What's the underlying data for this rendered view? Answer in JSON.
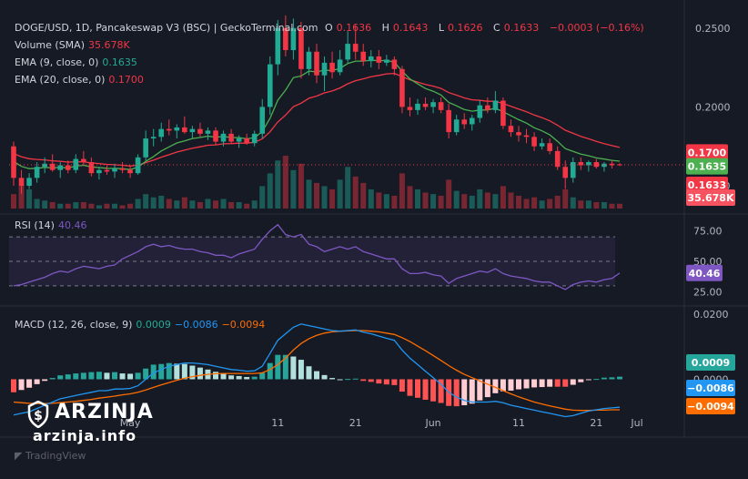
{
  "header": {
    "symbol": "DOGE/USD, 1D, Pancakeswap V3 (BSC) | GeckoTerminal.com",
    "ohlc": [
      {
        "key": "O",
        "value": "0.1636"
      },
      {
        "key": "H",
        "value": "0.1643"
      },
      {
        "key": "L",
        "value": "0.1626"
      },
      {
        "key": "C",
        "value": "0.1633"
      }
    ],
    "change": "−0.0003 (−0.16%)"
  },
  "indicators": {
    "volume": {
      "label": "Volume (SMA)",
      "value": "35.678K"
    },
    "ema9": {
      "label": "EMA (9, close, 0)",
      "value": "0.1635"
    },
    "ema20": {
      "label": "EMA (20, close, 0)",
      "value": "0.1700"
    },
    "rsi": {
      "label": "RSI (14)",
      "value": "40.46"
    },
    "macd": {
      "label": "MACD (12, 26, close, 9)",
      "hist": "0.0009",
      "macd": "−0.0086",
      "signal": "−0.0094"
    }
  },
  "branding": {
    "name": "ARZINJA",
    "url": "arzinja.info",
    "platform": "TradingView"
  },
  "colors": {
    "bg": "#161a25",
    "up": "#22ab94",
    "down": "#f23645",
    "ema9": "#4caf50",
    "ema20": "#f23645",
    "rsi": "#7e57c2",
    "macd": "#2196f3",
    "signal": "#ff6d00"
  },
  "chart_data": [
    {
      "type": "candlestick",
      "title": "DOGE/USD, 1D, Pancakeswap V3 (BSC) | GeckoTerminal.com",
      "x_ticks": [
        "May",
        "11",
        "21",
        "Jun",
        "11",
        "21",
        "Jul"
      ],
      "y_ticks": [
        "0.2500",
        "0.2000",
        "0.1500"
      ],
      "ylim": [
        0.135,
        0.262
      ],
      "last_price_tags": [
        {
          "value": "0.1700",
          "series": "ema20"
        },
        {
          "value": "0.1635",
          "series": "ema9"
        },
        {
          "value": "0.1633",
          "series": "close"
        }
      ],
      "volume_tag": "35.678K",
      "candles": [
        [
          0.175,
          0.178,
          0.15,
          0.155
        ],
        [
          0.155,
          0.16,
          0.145,
          0.15
        ],
        [
          0.15,
          0.158,
          0.148,
          0.155
        ],
        [
          0.155,
          0.165,
          0.152,
          0.162
        ],
        [
          0.162,
          0.168,
          0.158,
          0.164
        ],
        [
          0.164,
          0.17,
          0.159,
          0.16
        ],
        [
          0.16,
          0.165,
          0.155,
          0.163
        ],
        [
          0.163,
          0.166,
          0.158,
          0.16
        ],
        [
          0.16,
          0.17,
          0.158,
          0.167
        ],
        [
          0.167,
          0.172,
          0.163,
          0.165
        ],
        [
          0.165,
          0.168,
          0.156,
          0.158
        ],
        [
          0.158,
          0.162,
          0.154,
          0.16
        ],
        [
          0.16,
          0.163,
          0.157,
          0.159
        ],
        [
          0.159,
          0.164,
          0.155,
          0.161
        ],
        [
          0.161,
          0.165,
          0.158,
          0.16
        ],
        [
          0.16,
          0.163,
          0.155,
          0.158
        ],
        [
          0.158,
          0.17,
          0.157,
          0.168
        ],
        [
          0.168,
          0.185,
          0.166,
          0.18
        ],
        [
          0.18,
          0.186,
          0.175,
          0.181
        ],
        [
          0.181,
          0.19,
          0.178,
          0.186
        ],
        [
          0.186,
          0.192,
          0.182,
          0.185
        ],
        [
          0.185,
          0.189,
          0.18,
          0.187
        ],
        [
          0.187,
          0.194,
          0.183,
          0.184
        ],
        [
          0.184,
          0.188,
          0.18,
          0.186
        ],
        [
          0.186,
          0.19,
          0.181,
          0.183
        ],
        [
          0.183,
          0.187,
          0.179,
          0.185
        ],
        [
          0.185,
          0.187,
          0.176,
          0.178
        ],
        [
          0.178,
          0.185,
          0.175,
          0.183
        ],
        [
          0.183,
          0.186,
          0.177,
          0.178
        ],
        [
          0.178,
          0.182,
          0.174,
          0.18
        ],
        [
          0.18,
          0.183,
          0.176,
          0.177
        ],
        [
          0.177,
          0.185,
          0.175,
          0.183
        ],
        [
          0.183,
          0.205,
          0.18,
          0.2
        ],
        [
          0.2,
          0.232,
          0.195,
          0.227
        ],
        [
          0.227,
          0.255,
          0.22,
          0.25
        ],
        [
          0.25,
          0.258,
          0.232,
          0.236
        ],
        [
          0.236,
          0.256,
          0.23,
          0.25
        ],
        [
          0.25,
          0.254,
          0.218,
          0.224
        ],
        [
          0.224,
          0.238,
          0.22,
          0.235
        ],
        [
          0.235,
          0.24,
          0.215,
          0.22
        ],
        [
          0.22,
          0.232,
          0.21,
          0.228
        ],
        [
          0.228,
          0.235,
          0.218,
          0.222
        ],
        [
          0.222,
          0.236,
          0.22,
          0.23
        ],
        [
          0.23,
          0.248,
          0.228,
          0.24
        ],
        [
          0.24,
          0.252,
          0.23,
          0.235
        ],
        [
          0.235,
          0.24,
          0.226,
          0.229
        ],
        [
          0.229,
          0.236,
          0.225,
          0.232
        ],
        [
          0.232,
          0.236,
          0.224,
          0.228
        ],
        [
          0.228,
          0.233,
          0.226,
          0.23
        ],
        [
          0.23,
          0.232,
          0.22,
          0.224
        ],
        [
          0.224,
          0.226,
          0.196,
          0.2
        ],
        [
          0.2,
          0.206,
          0.194,
          0.198
        ],
        [
          0.198,
          0.205,
          0.195,
          0.202
        ],
        [
          0.202,
          0.206,
          0.198,
          0.2
        ],
        [
          0.2,
          0.205,
          0.196,
          0.203
        ],
        [
          0.203,
          0.206,
          0.196,
          0.198
        ],
        [
          0.198,
          0.202,
          0.18,
          0.184
        ],
        [
          0.184,
          0.195,
          0.182,
          0.192
        ],
        [
          0.192,
          0.196,
          0.186,
          0.189
        ],
        [
          0.189,
          0.195,
          0.185,
          0.193
        ],
        [
          0.193,
          0.204,
          0.19,
          0.201
        ],
        [
          0.201,
          0.206,
          0.196,
          0.198
        ],
        [
          0.198,
          0.21,
          0.196,
          0.204
        ],
        [
          0.204,
          0.206,
          0.186,
          0.188
        ],
        [
          0.188,
          0.192,
          0.181,
          0.184
        ],
        [
          0.184,
          0.188,
          0.178,
          0.182
        ],
        [
          0.182,
          0.186,
          0.177,
          0.181
        ],
        [
          0.181,
          0.184,
          0.172,
          0.175
        ],
        [
          0.175,
          0.18,
          0.173,
          0.177
        ],
        [
          0.177,
          0.18,
          0.17,
          0.172
        ],
        [
          0.172,
          0.175,
          0.16,
          0.162
        ],
        [
          0.162,
          0.166,
          0.148,
          0.155
        ],
        [
          0.155,
          0.168,
          0.152,
          0.165
        ],
        [
          0.165,
          0.168,
          0.16,
          0.163
        ],
        [
          0.163,
          0.166,
          0.159,
          0.165
        ],
        [
          0.165,
          0.167,
          0.161,
          0.162
        ],
        [
          0.162,
          0.165,
          0.159,
          0.164
        ],
        [
          0.164,
          0.166,
          0.161,
          0.163
        ],
        [
          0.1636,
          0.1643,
          0.1626,
          0.1633
        ]
      ],
      "volume": [
        9,
        15,
        12,
        6,
        5,
        4,
        3,
        3,
        4,
        4,
        3,
        2,
        3,
        3,
        2,
        3,
        6,
        9,
        7,
        8,
        6,
        5,
        7,
        5,
        4,
        6,
        5,
        6,
        4,
        4,
        3,
        5,
        14,
        22,
        30,
        33,
        24,
        28,
        18,
        16,
        14,
        12,
        18,
        26,
        20,
        16,
        12,
        10,
        9,
        8,
        22,
        14,
        12,
        10,
        9,
        8,
        18,
        11,
        9,
        8,
        12,
        10,
        9,
        14,
        10,
        8,
        6,
        7,
        5,
        6,
        8,
        12,
        7,
        5,
        5,
        4,
        4,
        3,
        3
      ]
    },
    {
      "type": "line",
      "title": "RSI (14)",
      "y_ticks": [
        "75.00",
        "50.00",
        "25.00"
      ],
      "ylim": [
        15,
        85
      ],
      "bands": [
        30,
        50,
        70
      ],
      "values": [
        30,
        31,
        33,
        35,
        37,
        40,
        42,
        41,
        44,
        46,
        45,
        44,
        46,
        47,
        52,
        55,
        58,
        62,
        64,
        62,
        63,
        61,
        60,
        60,
        58,
        57,
        55,
        55,
        53,
        56,
        58,
        60,
        68,
        75,
        80,
        72,
        70,
        72,
        64,
        62,
        58,
        60,
        62,
        60,
        62,
        58,
        56,
        54,
        52,
        52,
        44,
        40,
        40,
        41,
        39,
        38,
        32,
        36,
        38,
        40,
        42,
        41,
        44,
        40,
        38,
        37,
        36,
        34,
        33,
        33,
        30,
        27,
        31,
        33,
        34,
        33,
        35,
        36,
        40.46
      ]
    },
    {
      "type": "macd",
      "title": "MACD (12, 26, close, 9)",
      "y_ticks": [
        "0.0200",
        "0.0000"
      ],
      "ylim": [
        -0.015,
        0.022
      ],
      "macd": [
        -0.011,
        -0.0105,
        -0.01,
        -0.009,
        -0.008,
        -0.007,
        -0.006,
        -0.0055,
        -0.005,
        -0.0045,
        -0.004,
        -0.0035,
        -0.0035,
        -0.003,
        -0.003,
        -0.0028,
        -0.002,
        0.0,
        0.002,
        0.003,
        0.004,
        0.0045,
        0.005,
        0.005,
        0.0048,
        0.0045,
        0.004,
        0.0035,
        0.003,
        0.0028,
        0.0025,
        0.0026,
        0.004,
        0.008,
        0.012,
        0.014,
        0.016,
        0.017,
        0.0165,
        0.016,
        0.0155,
        0.015,
        0.0148,
        0.015,
        0.0152,
        0.0145,
        0.014,
        0.0133,
        0.0126,
        0.012,
        0.009,
        0.0065,
        0.0045,
        0.0025,
        0.0005,
        -0.0015,
        -0.004,
        -0.0055,
        -0.0065,
        -0.007,
        -0.007,
        -0.007,
        -0.0068,
        -0.0072,
        -0.008,
        -0.0085,
        -0.009,
        -0.0095,
        -0.01,
        -0.0105,
        -0.011,
        -0.0115,
        -0.0112,
        -0.0105,
        -0.0098,
        -0.0094,
        -0.009,
        -0.0088,
        -0.0086
      ],
      "signal": [
        -0.007,
        -0.0072,
        -0.0074,
        -0.0075,
        -0.0075,
        -0.0074,
        -0.0072,
        -0.007,
        -0.0068,
        -0.0065,
        -0.0062,
        -0.0058,
        -0.0055,
        -0.0052,
        -0.0048,
        -0.0045,
        -0.004,
        -0.0033,
        -0.0025,
        -0.0017,
        -0.001,
        -0.0003,
        0.0003,
        0.0008,
        0.0012,
        0.0015,
        0.0017,
        0.0018,
        0.0018,
        0.0018,
        0.0018,
        0.0018,
        0.002,
        0.003,
        0.0045,
        0.0065,
        0.009,
        0.011,
        0.0125,
        0.0135,
        0.0142,
        0.0146,
        0.0148,
        0.0149,
        0.015,
        0.015,
        0.0148,
        0.0146,
        0.0142,
        0.0138,
        0.0128,
        0.0116,
        0.0102,
        0.0088,
        0.0073,
        0.0058,
        0.0042,
        0.0028,
        0.0015,
        0.0005,
        -0.0005,
        -0.0015,
        -0.0025,
        -0.0035,
        -0.0045,
        -0.0054,
        -0.0062,
        -0.007,
        -0.0076,
        -0.0082,
        -0.0087,
        -0.0092,
        -0.0095,
        -0.0096,
        -0.0096,
        -0.0095,
        -0.0095,
        -0.0094,
        -0.0094
      ]
    }
  ]
}
